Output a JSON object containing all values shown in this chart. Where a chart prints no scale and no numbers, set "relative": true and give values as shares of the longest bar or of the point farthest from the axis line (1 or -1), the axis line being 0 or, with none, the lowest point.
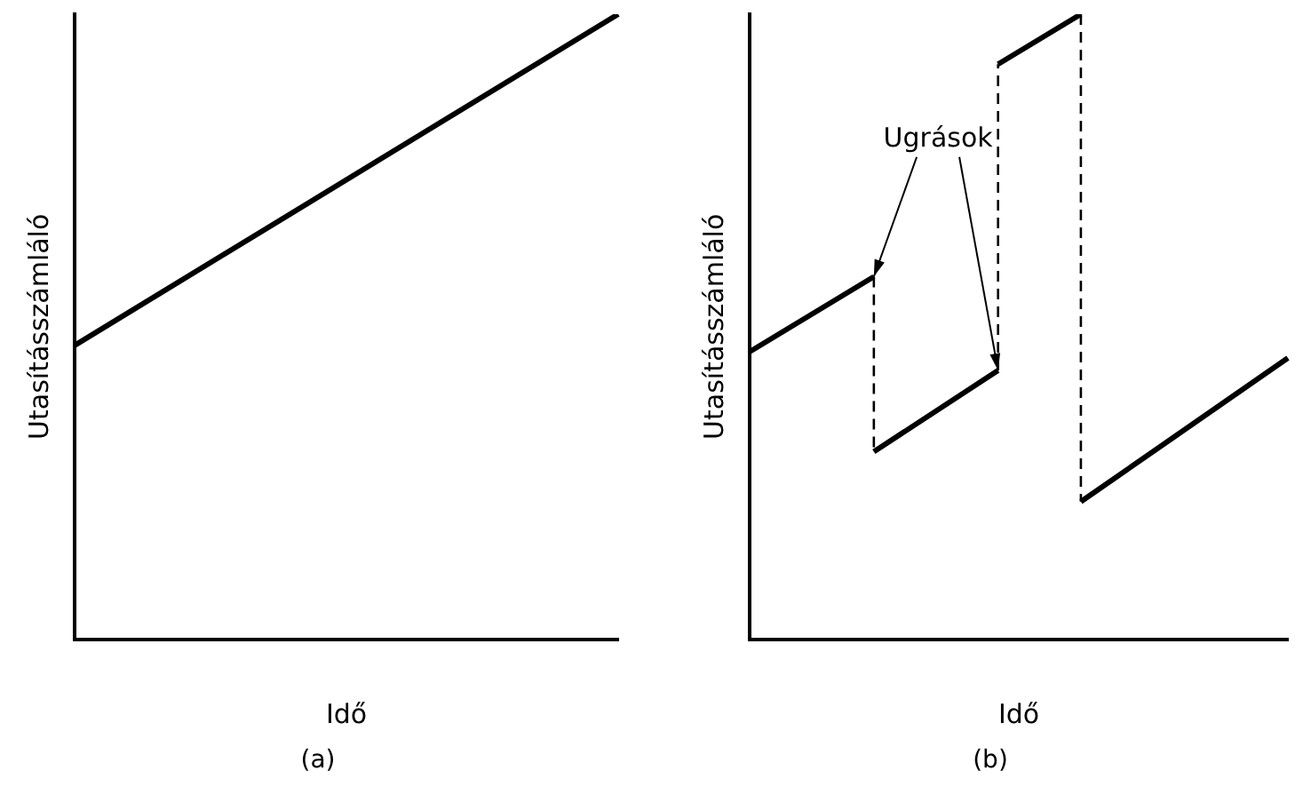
{
  "chart_data": [
    {
      "type": "line",
      "title": "(a)",
      "xlabel": "Idő",
      "ylabel": "Utasításszámláló",
      "relative": true,
      "legend": false,
      "grid": false,
      "marker": "none",
      "categories": [
        null,
        null
      ],
      "series": [
        {
          "color": "#000000",
          "values": [
            0.47,
            1
          ]
        }
      ]
    },
    {
      "type": "line",
      "title": "(b)",
      "xlabel": "Idő",
      "ylabel": "Utasításszámláló",
      "relative": true,
      "legend": false,
      "grid": false,
      "marker": "none",
      "annotations": [
        "Ugrások"
      ],
      "categories": [
        null,
        null,
        null,
        null,
        null,
        null,
        null,
        null,
        null,
        null,
        null,
        null,
        null,
        null
      ],
      "series": [
        {
          "color": "#000000",
          "values": [
            0.46,
            null,
            null,
            0.58,
            null,
            null,
            null,
            null,
            null,
            null,
            null,
            null,
            null,
            null
          ]
        },
        {
          "color": "#000000",
          "values": [
            null,
            null,
            null,
            0.3,
            null,
            null,
            0.43,
            null,
            null,
            null,
            null,
            null,
            null,
            null
          ]
        },
        {
          "color": "#000000",
          "values": [
            null,
            null,
            null,
            null,
            null,
            null,
            0.92,
            null,
            1,
            null,
            null,
            null,
            null,
            null
          ]
        },
        {
          "color": "#000000",
          "values": [
            null,
            null,
            null,
            null,
            null,
            null,
            null,
            null,
            0.22,
            null,
            null,
            null,
            null,
            0.45
          ]
        }
      ]
    }
  ]
}
